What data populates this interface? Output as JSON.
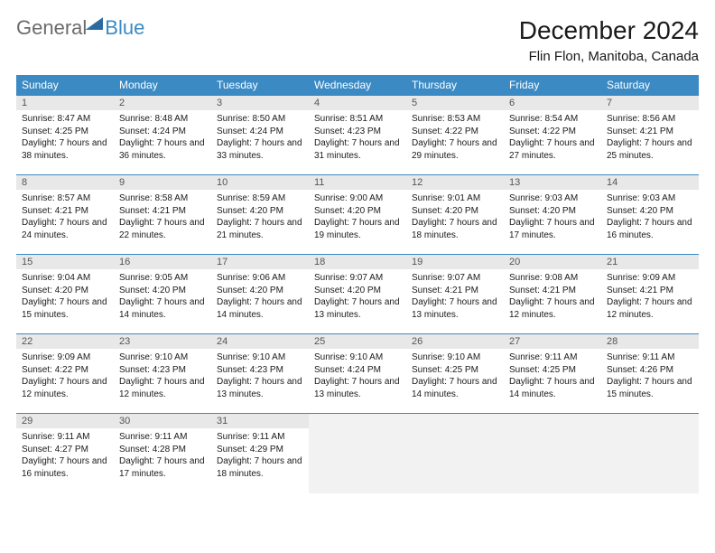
{
  "brand": {
    "part1": "General",
    "part2": "Blue"
  },
  "title": "December 2024",
  "location": "Flin Flon, Manitoba, Canada",
  "colors": {
    "accent": "#3b8ac4",
    "header_text": "#ffffff",
    "daynum_bg": "#e8e8e8",
    "empty_bg": "#f2f2f2",
    "body_text": "#1a1a1a",
    "logo_gray": "#6b6b6b"
  },
  "day_headers": [
    "Sunday",
    "Monday",
    "Tuesday",
    "Wednesday",
    "Thursday",
    "Friday",
    "Saturday"
  ],
  "weeks": [
    [
      {
        "n": "1",
        "sr": "Sunrise: 8:47 AM",
        "ss": "Sunset: 4:25 PM",
        "dl": "Daylight: 7 hours and 38 minutes."
      },
      {
        "n": "2",
        "sr": "Sunrise: 8:48 AM",
        "ss": "Sunset: 4:24 PM",
        "dl": "Daylight: 7 hours and 36 minutes."
      },
      {
        "n": "3",
        "sr": "Sunrise: 8:50 AM",
        "ss": "Sunset: 4:24 PM",
        "dl": "Daylight: 7 hours and 33 minutes."
      },
      {
        "n": "4",
        "sr": "Sunrise: 8:51 AM",
        "ss": "Sunset: 4:23 PM",
        "dl": "Daylight: 7 hours and 31 minutes."
      },
      {
        "n": "5",
        "sr": "Sunrise: 8:53 AM",
        "ss": "Sunset: 4:22 PM",
        "dl": "Daylight: 7 hours and 29 minutes."
      },
      {
        "n": "6",
        "sr": "Sunrise: 8:54 AM",
        "ss": "Sunset: 4:22 PM",
        "dl": "Daylight: 7 hours and 27 minutes."
      },
      {
        "n": "7",
        "sr": "Sunrise: 8:56 AM",
        "ss": "Sunset: 4:21 PM",
        "dl": "Daylight: 7 hours and 25 minutes."
      }
    ],
    [
      {
        "n": "8",
        "sr": "Sunrise: 8:57 AM",
        "ss": "Sunset: 4:21 PM",
        "dl": "Daylight: 7 hours and 24 minutes."
      },
      {
        "n": "9",
        "sr": "Sunrise: 8:58 AM",
        "ss": "Sunset: 4:21 PM",
        "dl": "Daylight: 7 hours and 22 minutes."
      },
      {
        "n": "10",
        "sr": "Sunrise: 8:59 AM",
        "ss": "Sunset: 4:20 PM",
        "dl": "Daylight: 7 hours and 21 minutes."
      },
      {
        "n": "11",
        "sr": "Sunrise: 9:00 AM",
        "ss": "Sunset: 4:20 PM",
        "dl": "Daylight: 7 hours and 19 minutes."
      },
      {
        "n": "12",
        "sr": "Sunrise: 9:01 AM",
        "ss": "Sunset: 4:20 PM",
        "dl": "Daylight: 7 hours and 18 minutes."
      },
      {
        "n": "13",
        "sr": "Sunrise: 9:03 AM",
        "ss": "Sunset: 4:20 PM",
        "dl": "Daylight: 7 hours and 17 minutes."
      },
      {
        "n": "14",
        "sr": "Sunrise: 9:03 AM",
        "ss": "Sunset: 4:20 PM",
        "dl": "Daylight: 7 hours and 16 minutes."
      }
    ],
    [
      {
        "n": "15",
        "sr": "Sunrise: 9:04 AM",
        "ss": "Sunset: 4:20 PM",
        "dl": "Daylight: 7 hours and 15 minutes."
      },
      {
        "n": "16",
        "sr": "Sunrise: 9:05 AM",
        "ss": "Sunset: 4:20 PM",
        "dl": "Daylight: 7 hours and 14 minutes."
      },
      {
        "n": "17",
        "sr": "Sunrise: 9:06 AM",
        "ss": "Sunset: 4:20 PM",
        "dl": "Daylight: 7 hours and 14 minutes."
      },
      {
        "n": "18",
        "sr": "Sunrise: 9:07 AM",
        "ss": "Sunset: 4:20 PM",
        "dl": "Daylight: 7 hours and 13 minutes."
      },
      {
        "n": "19",
        "sr": "Sunrise: 9:07 AM",
        "ss": "Sunset: 4:21 PM",
        "dl": "Daylight: 7 hours and 13 minutes."
      },
      {
        "n": "20",
        "sr": "Sunrise: 9:08 AM",
        "ss": "Sunset: 4:21 PM",
        "dl": "Daylight: 7 hours and 12 minutes."
      },
      {
        "n": "21",
        "sr": "Sunrise: 9:09 AM",
        "ss": "Sunset: 4:21 PM",
        "dl": "Daylight: 7 hours and 12 minutes."
      }
    ],
    [
      {
        "n": "22",
        "sr": "Sunrise: 9:09 AM",
        "ss": "Sunset: 4:22 PM",
        "dl": "Daylight: 7 hours and 12 minutes."
      },
      {
        "n": "23",
        "sr": "Sunrise: 9:10 AM",
        "ss": "Sunset: 4:23 PM",
        "dl": "Daylight: 7 hours and 12 minutes."
      },
      {
        "n": "24",
        "sr": "Sunrise: 9:10 AM",
        "ss": "Sunset: 4:23 PM",
        "dl": "Daylight: 7 hours and 13 minutes."
      },
      {
        "n": "25",
        "sr": "Sunrise: 9:10 AM",
        "ss": "Sunset: 4:24 PM",
        "dl": "Daylight: 7 hours and 13 minutes."
      },
      {
        "n": "26",
        "sr": "Sunrise: 9:10 AM",
        "ss": "Sunset: 4:25 PM",
        "dl": "Daylight: 7 hours and 14 minutes."
      },
      {
        "n": "27",
        "sr": "Sunrise: 9:11 AM",
        "ss": "Sunset: 4:25 PM",
        "dl": "Daylight: 7 hours and 14 minutes."
      },
      {
        "n": "28",
        "sr": "Sunrise: 9:11 AM",
        "ss": "Sunset: 4:26 PM",
        "dl": "Daylight: 7 hours and 15 minutes."
      }
    ],
    [
      {
        "n": "29",
        "sr": "Sunrise: 9:11 AM",
        "ss": "Sunset: 4:27 PM",
        "dl": "Daylight: 7 hours and 16 minutes."
      },
      {
        "n": "30",
        "sr": "Sunrise: 9:11 AM",
        "ss": "Sunset: 4:28 PM",
        "dl": "Daylight: 7 hours and 17 minutes."
      },
      {
        "n": "31",
        "sr": "Sunrise: 9:11 AM",
        "ss": "Sunset: 4:29 PM",
        "dl": "Daylight: 7 hours and 18 minutes."
      },
      null,
      null,
      null,
      null
    ]
  ]
}
